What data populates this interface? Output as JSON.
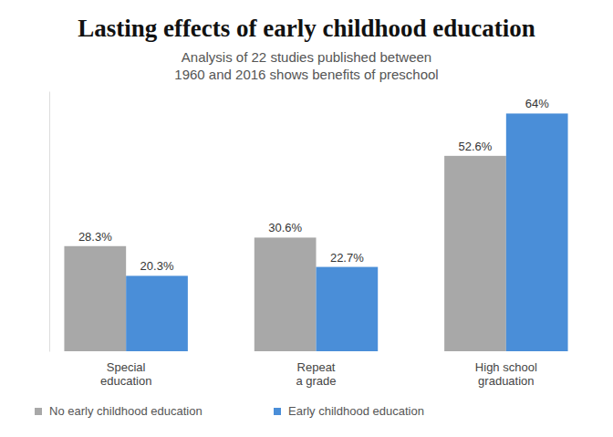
{
  "chart_data": {
    "type": "bar",
    "title": "Lasting effects of early childhood education",
    "subtitle": [
      "Analysis of 22 studies published between",
      "1960 and 2016 shows benefits of preschool"
    ],
    "categories": [
      "Special education",
      "Repeat a grade",
      "High school graduation"
    ],
    "series": [
      {
        "name": "No early childhood education",
        "color": "#a8a8a8",
        "values": [
          28.3,
          30.6,
          52.6
        ],
        "value_labels": [
          "28.3%",
          "30.6%",
          "52.6%"
        ]
      },
      {
        "name": "Early childhood education",
        "color": "#4a8ed8",
        "values": [
          20.3,
          22.7,
          64
        ],
        "value_labels": [
          "20.3%",
          "22.7%",
          "64%"
        ]
      }
    ],
    "ylim": [
      0,
      70
    ],
    "grid": false,
    "data_labels": true,
    "tick_labels": "x",
    "legend": "bottom"
  }
}
